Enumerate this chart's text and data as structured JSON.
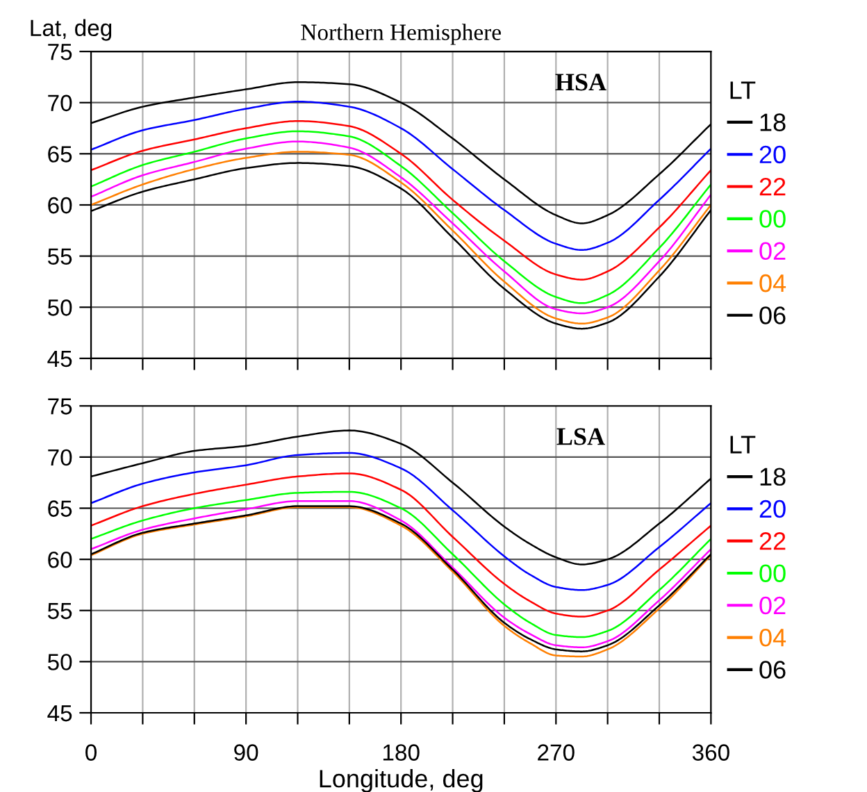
{
  "chart_data": [
    {
      "type": "line",
      "title": "Northern Hemisphere",
      "ylabel": "Lat, deg",
      "annotations": [
        "HSA"
      ],
      "legend_title": "LT",
      "legend": "right",
      "grid": true,
      "tick_labels": "y",
      "x": [
        0,
        30,
        60,
        90,
        120,
        150,
        180,
        210,
        240,
        270,
        285,
        300,
        330,
        360
      ],
      "xlim": [
        0,
        360
      ],
      "xticks": [
        0,
        {
          "value": 30,
          "label": null
        },
        {
          "value": 60,
          "label": null
        },
        90,
        {
          "value": 120,
          "label": null
        },
        {
          "value": 150,
          "label": null
        },
        180,
        {
          "value": 210,
          "label": null
        },
        {
          "value": 240,
          "label": null
        },
        270,
        {
          "value": 300,
          "label": null
        },
        {
          "value": 330,
          "label": null
        },
        360
      ],
      "ylim": [
        45,
        75
      ],
      "yticks": [
        45,
        50,
        55,
        60,
        65,
        70,
        75
      ],
      "series": [
        {
          "name": "18",
          "color": "#000000",
          "values": [
            68.0,
            69.6,
            70.5,
            71.3,
            72.0,
            71.8,
            70.0,
            66.5,
            62.5,
            59.0,
            58.2,
            59.0,
            63.0,
            67.9
          ]
        },
        {
          "name": "20",
          "color": "#0000ff",
          "values": [
            65.4,
            67.3,
            68.3,
            69.4,
            70.1,
            69.6,
            67.5,
            63.5,
            59.5,
            56.2,
            55.6,
            56.3,
            60.5,
            65.5
          ]
        },
        {
          "name": "22",
          "color": "#ff0000",
          "values": [
            63.4,
            65.3,
            66.4,
            67.5,
            68.2,
            67.7,
            65.0,
            60.5,
            56.5,
            53.2,
            52.7,
            53.5,
            57.8,
            63.4
          ]
        },
        {
          "name": "00",
          "color": "#00ff00",
          "values": [
            61.8,
            63.9,
            65.2,
            66.5,
            67.2,
            66.7,
            63.8,
            59.2,
            54.5,
            51.0,
            50.4,
            51.2,
            55.8,
            62.0
          ]
        },
        {
          "name": "02",
          "color": "#ff00ff",
          "values": [
            60.8,
            62.9,
            64.2,
            65.5,
            66.2,
            65.6,
            62.7,
            58.2,
            53.5,
            49.8,
            49.4,
            50.0,
            54.5,
            61.0
          ]
        },
        {
          "name": "04",
          "color": "#ff7f00",
          "values": [
            60.0,
            62.0,
            63.5,
            64.6,
            65.2,
            64.9,
            62.2,
            57.5,
            52.5,
            48.9,
            48.4,
            49.0,
            53.6,
            60.0
          ]
        },
        {
          "name": "06",
          "color": "#000000",
          "values": [
            59.4,
            61.3,
            62.5,
            63.6,
            64.1,
            63.8,
            61.6,
            56.8,
            51.8,
            48.4,
            47.9,
            48.5,
            53.0,
            59.5
          ]
        }
      ]
    },
    {
      "type": "line",
      "xlabel": "Longitude, deg",
      "annotations": [
        "LSA"
      ],
      "legend_title": "LT",
      "legend": "right",
      "grid": true,
      "x": [
        0,
        30,
        60,
        90,
        120,
        150,
        180,
        210,
        240,
        255,
        270,
        285,
        300,
        330,
        360
      ],
      "xlim": [
        0,
        360
      ],
      "xticks": [
        0,
        {
          "value": 30,
          "label": null
        },
        {
          "value": 60,
          "label": null
        },
        90,
        {
          "value": 120,
          "label": null
        },
        {
          "value": 150,
          "label": null
        },
        180,
        {
          "value": 210,
          "label": null
        },
        {
          "value": 240,
          "label": null
        },
        270,
        {
          "value": 300,
          "label": null
        },
        {
          "value": 330,
          "label": null
        },
        360
      ],
      "ylim": [
        45,
        75
      ],
      "yticks": [
        45,
        50,
        55,
        60,
        65,
        70,
        75
      ],
      "series": [
        {
          "name": "18",
          "color": "#000000",
          "values": [
            68.1,
            69.4,
            70.6,
            71.1,
            72.0,
            72.6,
            71.3,
            67.5,
            63.2,
            61.5,
            60.2,
            59.5,
            60.0,
            63.5,
            67.9
          ]
        },
        {
          "name": "20",
          "color": "#0000ff",
          "values": [
            65.5,
            67.4,
            68.5,
            69.2,
            70.2,
            70.4,
            68.9,
            64.8,
            60.3,
            58.5,
            57.3,
            57.0,
            57.5,
            61.2,
            65.5
          ]
        },
        {
          "name": "22",
          "color": "#ff0000",
          "values": [
            63.3,
            65.2,
            66.4,
            67.3,
            68.1,
            68.4,
            66.8,
            62.2,
            57.6,
            55.9,
            54.7,
            54.4,
            55.0,
            59.0,
            63.3
          ]
        },
        {
          "name": "00",
          "color": "#00ff00",
          "values": [
            62.0,
            63.8,
            65.0,
            65.8,
            66.5,
            66.6,
            65.0,
            60.5,
            55.6,
            53.8,
            52.6,
            52.4,
            53.0,
            57.0,
            62.0
          ]
        },
        {
          "name": "02",
          "color": "#ff00ff",
          "values": [
            61.0,
            62.9,
            64.0,
            64.9,
            65.7,
            65.7,
            63.8,
            59.2,
            54.3,
            52.7,
            51.6,
            51.4,
            52.0,
            56.0,
            61.0
          ]
        },
        {
          "name": "04",
          "color": "#ff7f00",
          "values": [
            60.4,
            62.5,
            63.4,
            64.2,
            65.1,
            65.1,
            63.3,
            58.8,
            53.5,
            51.8,
            50.6,
            50.5,
            51.2,
            55.2,
            60.4
          ]
        },
        {
          "name": "06",
          "color": "#000000",
          "values": [
            60.5,
            62.6,
            63.5,
            64.3,
            65.2,
            65.2,
            63.5,
            59.0,
            53.8,
            52.2,
            51.2,
            51.0,
            51.6,
            55.5,
            60.5
          ]
        }
      ]
    }
  ]
}
